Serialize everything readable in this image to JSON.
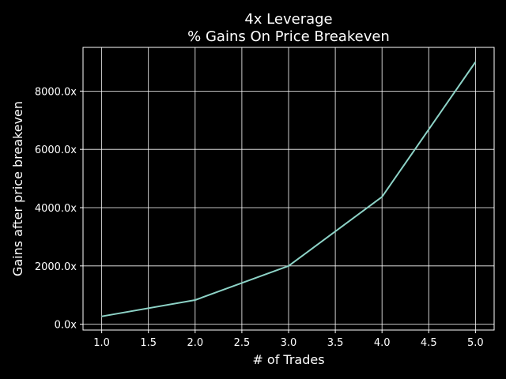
{
  "chart_data": {
    "type": "line",
    "title_line1": "4x Leverage",
    "title_line2": "% Gains On Price Breakeven",
    "xlabel": "# of Trades",
    "ylabel": "Gains after price breakeven",
    "xlim": [
      0.8,
      5.2
    ],
    "ylim": [
      -200,
      9500
    ],
    "xticks": [
      1.0,
      1.5,
      2.0,
      2.5,
      3.0,
      3.5,
      4.0,
      4.5,
      5.0
    ],
    "xtick_labels": [
      "1.0",
      "1.5",
      "2.0",
      "2.5",
      "3.0",
      "3.5",
      "4.0",
      "4.5",
      "5.0"
    ],
    "yticks": [
      0,
      2000,
      4000,
      6000,
      8000
    ],
    "ytick_labels": [
      "0.0x",
      "2000.0x",
      "4000.0x",
      "6000.0x",
      "8000.0x"
    ],
    "grid": true,
    "colors": {
      "background": "#000000",
      "line": "#8dd3c7",
      "grid": "#ffffff",
      "text": "#ffffff"
    },
    "series": [
      {
        "x": [
          1,
          2,
          3,
          4,
          5
        ],
        "values": [
          270,
          830,
          2000,
          4370,
          9000
        ]
      }
    ]
  }
}
